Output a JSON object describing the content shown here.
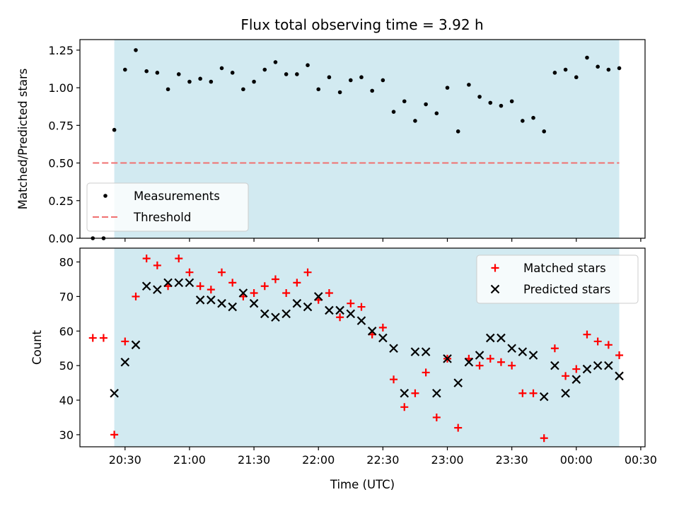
{
  "chart_data": [
    {
      "type": "scatter",
      "title": "Flux total observing time = 3.92 h",
      "xlabel": "",
      "ylabel": "Matched/Predicted stars",
      "ylim": [
        0,
        1.32
      ],
      "yticks": [
        0.0,
        0.25,
        0.5,
        0.75,
        1.0,
        1.25
      ],
      "ytick_labels": [
        "0.00",
        "0.25",
        "0.50",
        "0.75",
        "1.00",
        "1.25"
      ],
      "xlim": [
        "20:09",
        "00:32"
      ],
      "shaded_span": [
        "20:25",
        "00:20"
      ],
      "shade_color": "#add8e6",
      "legend_position": "lower-left",
      "series": [
        {
          "name": "Measurements",
          "kind": "dots",
          "color": "#000000",
          "points": [
            [
              "20:15",
              0.0
            ],
            [
              "20:20",
              0.0
            ],
            [
              "20:25",
              0.72
            ],
            [
              "20:30",
              1.12
            ],
            [
              "20:35",
              1.25
            ],
            [
              "20:40",
              1.11
            ],
            [
              "20:45",
              1.1
            ],
            [
              "20:50",
              0.99
            ],
            [
              "20:55",
              1.09
            ],
            [
              "21:00",
              1.04
            ],
            [
              "21:05",
              1.06
            ],
            [
              "21:10",
              1.04
            ],
            [
              "21:15",
              1.13
            ],
            [
              "21:20",
              1.1
            ],
            [
              "21:25",
              0.99
            ],
            [
              "21:30",
              1.04
            ],
            [
              "21:35",
              1.12
            ],
            [
              "21:40",
              1.17
            ],
            [
              "21:45",
              1.09
            ],
            [
              "21:50",
              1.09
            ],
            [
              "21:55",
              1.15
            ],
            [
              "22:00",
              0.99
            ],
            [
              "22:05",
              1.07
            ],
            [
              "22:10",
              0.97
            ],
            [
              "22:15",
              1.05
            ],
            [
              "22:20",
              1.07
            ],
            [
              "22:25",
              0.98
            ],
            [
              "22:30",
              1.05
            ],
            [
              "22:35",
              0.84
            ],
            [
              "22:40",
              0.91
            ],
            [
              "22:45",
              0.78
            ],
            [
              "22:50",
              0.89
            ],
            [
              "22:55",
              0.83
            ],
            [
              "23:00",
              1.0
            ],
            [
              "23:05",
              0.71
            ],
            [
              "23:10",
              1.02
            ],
            [
              "23:15",
              0.94
            ],
            [
              "23:20",
              0.9
            ],
            [
              "23:25",
              0.88
            ],
            [
              "23:30",
              0.91
            ],
            [
              "23:35",
              0.78
            ],
            [
              "23:40",
              0.8
            ],
            [
              "23:45",
              0.71
            ],
            [
              "23:50",
              1.1
            ],
            [
              "23:55",
              1.12
            ],
            [
              "00:00",
              1.07
            ],
            [
              "00:05",
              1.2
            ],
            [
              "00:10",
              1.14
            ],
            [
              "00:15",
              1.12
            ],
            [
              "00:20",
              1.13
            ]
          ]
        },
        {
          "name": "Threshold",
          "kind": "dashed-line",
          "color": "#f07070",
          "y": 0.5,
          "x_range": [
            "20:15",
            "00:20"
          ]
        }
      ]
    },
    {
      "type": "scatter",
      "title": "",
      "xlabel": "Time (UTC)",
      "ylabel": "Count",
      "ylim": [
        26.5,
        84
      ],
      "yticks": [
        30,
        40,
        50,
        60,
        70,
        80
      ],
      "ytick_labels": [
        "30",
        "40",
        "50",
        "60",
        "70",
        "80"
      ],
      "xlim": [
        "20:09",
        "00:32"
      ],
      "xticks": [
        "20:30",
        "21:00",
        "21:30",
        "22:00",
        "22:30",
        "23:00",
        "23:30",
        "00:00",
        "00:30"
      ],
      "xtick_labels": [
        "20:30",
        "21:00",
        "21:30",
        "22:00",
        "22:30",
        "23:00",
        "23:30",
        "00:00",
        "00:30"
      ],
      "shaded_span": [
        "20:25",
        "00:20"
      ],
      "shade_color": "#add8e6",
      "legend_position": "top-right",
      "series": [
        {
          "name": "Matched stars",
          "kind": "plus",
          "color": "#ff0000",
          "points": [
            [
              "20:15",
              58
            ],
            [
              "20:20",
              58
            ],
            [
              "20:25",
              30
            ],
            [
              "20:30",
              57
            ],
            [
              "20:35",
              70
            ],
            [
              "20:40",
              81
            ],
            [
              "20:45",
              79
            ],
            [
              "20:50",
              73
            ],
            [
              "20:55",
              81
            ],
            [
              "21:00",
              77
            ],
            [
              "21:05",
              73
            ],
            [
              "21:10",
              72
            ],
            [
              "21:15",
              77
            ],
            [
              "21:20",
              74
            ],
            [
              "21:25",
              70
            ],
            [
              "21:30",
              71
            ],
            [
              "21:35",
              73
            ],
            [
              "21:40",
              75
            ],
            [
              "21:45",
              71
            ],
            [
              "21:50",
              74
            ],
            [
              "21:55",
              77
            ],
            [
              "22:00",
              69
            ],
            [
              "22:05",
              71
            ],
            [
              "22:10",
              64
            ],
            [
              "22:15",
              68
            ],
            [
              "22:20",
              67
            ],
            [
              "22:25",
              59
            ],
            [
              "22:30",
              61
            ],
            [
              "22:35",
              46
            ],
            [
              "22:40",
              38
            ],
            [
              "22:45",
              42
            ],
            [
              "22:50",
              48
            ],
            [
              "22:55",
              35
            ],
            [
              "23:00",
              52
            ],
            [
              "23:05",
              32
            ],
            [
              "23:10",
              52
            ],
            [
              "23:15",
              50
            ],
            [
              "23:20",
              52
            ],
            [
              "23:25",
              51
            ],
            [
              "23:30",
              50
            ],
            [
              "23:35",
              42
            ],
            [
              "23:40",
              42
            ],
            [
              "23:45",
              29
            ],
            [
              "23:50",
              55
            ],
            [
              "23:55",
              47
            ],
            [
              "00:00",
              49
            ],
            [
              "00:05",
              59
            ],
            [
              "00:10",
              57
            ],
            [
              "00:15",
              56
            ],
            [
              "00:20",
              53
            ]
          ]
        },
        {
          "name": "Predicted stars",
          "kind": "x",
          "color": "#000000",
          "points": [
            [
              "20:25",
              42
            ],
            [
              "20:30",
              51
            ],
            [
              "20:35",
              56
            ],
            [
              "20:40",
              73
            ],
            [
              "20:45",
              72
            ],
            [
              "20:50",
              74
            ],
            [
              "20:55",
              74
            ],
            [
              "21:00",
              74
            ],
            [
              "21:05",
              69
            ],
            [
              "21:10",
              69
            ],
            [
              "21:15",
              68
            ],
            [
              "21:20",
              67
            ],
            [
              "21:25",
              71
            ],
            [
              "21:30",
              68
            ],
            [
              "21:35",
              65
            ],
            [
              "21:40",
              64
            ],
            [
              "21:45",
              65
            ],
            [
              "21:50",
              68
            ],
            [
              "21:55",
              67
            ],
            [
              "22:00",
              70
            ],
            [
              "22:05",
              66
            ],
            [
              "22:10",
              66
            ],
            [
              "22:15",
              65
            ],
            [
              "22:20",
              63
            ],
            [
              "22:25",
              60
            ],
            [
              "22:30",
              58
            ],
            [
              "22:35",
              55
            ],
            [
              "22:40",
              42
            ],
            [
              "22:45",
              54
            ],
            [
              "22:50",
              54
            ],
            [
              "22:55",
              42
            ],
            [
              "23:00",
              52
            ],
            [
              "23:05",
              45
            ],
            [
              "23:10",
              51
            ],
            [
              "23:15",
              53
            ],
            [
              "23:20",
              58
            ],
            [
              "23:25",
              58
            ],
            [
              "23:30",
              55
            ],
            [
              "23:35",
              54
            ],
            [
              "23:40",
              53
            ],
            [
              "23:45",
              41
            ],
            [
              "23:50",
              50
            ],
            [
              "23:55",
              42
            ],
            [
              "00:00",
              46
            ],
            [
              "00:05",
              49
            ],
            [
              "00:10",
              50
            ],
            [
              "00:15",
              50
            ],
            [
              "00:20",
              47
            ]
          ]
        }
      ]
    }
  ]
}
